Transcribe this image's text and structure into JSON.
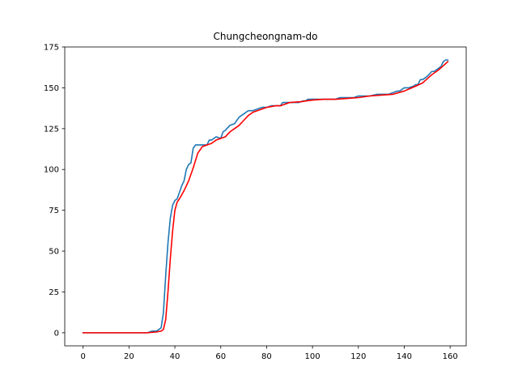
{
  "chart_data": {
    "type": "line",
    "title": "Chungcheongnam-do",
    "xlabel": "",
    "ylabel": "",
    "xlim": [
      -8,
      167
    ],
    "ylim": [
      -8,
      175
    ],
    "xticks": [
      0,
      20,
      40,
      60,
      80,
      100,
      120,
      140,
      160
    ],
    "yticks": [
      0,
      25,
      50,
      75,
      100,
      125,
      150,
      175
    ],
    "grid": false,
    "legend": "none",
    "series": [
      {
        "color": "#1f77b4",
        "x": [
          0,
          28,
          30,
          32,
          33,
          34,
          35,
          36,
          37,
          38,
          39,
          40,
          41,
          42,
          43,
          44,
          45,
          46,
          47,
          48,
          49,
          50,
          52,
          54,
          55,
          56,
          58,
          60,
          61,
          62,
          64,
          66,
          68,
          70,
          72,
          74,
          76,
          78,
          80,
          82,
          84,
          86,
          87,
          88,
          90,
          92,
          94,
          96,
          97,
          98,
          100,
          105,
          110,
          112,
          115,
          118,
          120,
          122,
          125,
          128,
          130,
          133,
          135,
          137,
          138,
          140,
          142,
          144,
          145,
          146,
          147,
          148,
          150,
          152,
          153,
          154,
          156,
          157,
          158,
          159
        ],
        "values": [
          0,
          0,
          1,
          1,
          2,
          3,
          12,
          35,
          55,
          70,
          78,
          81,
          82,
          86,
          90,
          93,
          100,
          103,
          104,
          113,
          115,
          115,
          115,
          115,
          118,
          118,
          120,
          119,
          123,
          124,
          127,
          128,
          132,
          134,
          136,
          136,
          137,
          138,
          138,
          139,
          139,
          139,
          141,
          141,
          141,
          141,
          141,
          142,
          142,
          143,
          143,
          143,
          143,
          144,
          144,
          144,
          145,
          145,
          145,
          146,
          146,
          146,
          147,
          148,
          148,
          150,
          150,
          151,
          152,
          152,
          155,
          155,
          157,
          160,
          160,
          161,
          163,
          166,
          167,
          167
        ]
      },
      {
        "color": "#ff0000",
        "x": [
          0,
          28,
          32,
          34,
          35,
          36,
          37,
          38,
          39,
          40,
          41,
          42,
          44,
          46,
          48,
          50,
          52,
          54,
          56,
          58,
          60,
          62,
          64,
          66,
          68,
          70,
          72,
          74,
          76,
          78,
          80,
          82,
          84,
          86,
          88,
          90,
          95,
          100,
          105,
          110,
          115,
          120,
          125,
          130,
          135,
          140,
          145,
          148,
          150,
          152,
          155,
          157,
          159
        ],
        "values": [
          0,
          0,
          0.5,
          1,
          2,
          8,
          25,
          45,
          62,
          75,
          80,
          82,
          87,
          93,
          101,
          110,
          114,
          115,
          116,
          118,
          119,
          120,
          123,
          125,
          127,
          130,
          133,
          135,
          136,
          137,
          138,
          138.5,
          139,
          139,
          140,
          141,
          141.5,
          142.5,
          143,
          143,
          143.5,
          144,
          145,
          145.5,
          146,
          148,
          151,
          153,
          155.5,
          158,
          161,
          163.5,
          166
        ]
      }
    ]
  }
}
